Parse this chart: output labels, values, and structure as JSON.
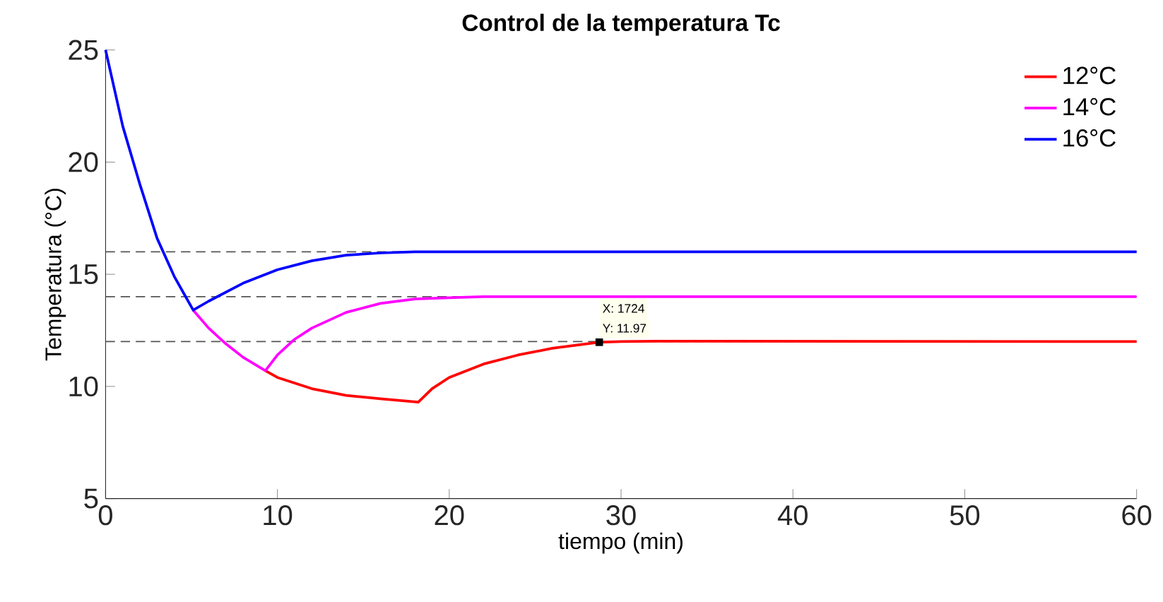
{
  "chart_data": {
    "type": "line",
    "title": "Control de la temperatura Tc",
    "xlabel": "tiempo (min)",
    "ylabel": "Temperatura (°C)",
    "xlim": [
      0,
      60
    ],
    "ylim": [
      5,
      25
    ],
    "xticks": [
      0,
      10,
      20,
      30,
      40,
      50,
      60
    ],
    "yticks": [
      5,
      10,
      15,
      20,
      25
    ],
    "grid": false,
    "legend": "top right",
    "line_style": "solid",
    "marker": "none",
    "series": [
      {
        "name": "12°C",
        "color": "#ff0000",
        "x": [
          9.3,
          10,
          12,
          14,
          16,
          18.2,
          19,
          20,
          22,
          24,
          26,
          28,
          28.73,
          30,
          32,
          35,
          60
        ],
        "values": [
          10.7,
          10.4,
          9.9,
          9.6,
          9.45,
          9.3,
          9.9,
          10.4,
          11.0,
          11.4,
          11.7,
          11.9,
          11.97,
          12.0,
          12.02,
          12.02,
          12
        ]
      },
      {
        "name": "14°C",
        "color": "#ff00ff",
        "x": [
          5.1,
          6,
          7,
          8,
          9.3,
          10,
          11,
          12,
          14,
          16,
          18,
          20,
          22,
          60
        ],
        "values": [
          13.4,
          12.6,
          11.9,
          11.3,
          10.7,
          11.4,
          12.1,
          12.6,
          13.3,
          13.7,
          13.9,
          13.95,
          14,
          14
        ]
      },
      {
        "name": "16°C",
        "color": "#0000ff",
        "x": [
          0,
          1,
          2,
          3,
          4,
          5.1,
          6,
          8,
          10,
          12,
          14,
          16,
          18,
          60
        ],
        "values": [
          25,
          21.6,
          19.0,
          16.6,
          14.9,
          13.4,
          13.8,
          14.6,
          15.2,
          15.6,
          15.85,
          15.95,
          16,
          16
        ]
      }
    ],
    "ref_lines": [
      {
        "axis": "y",
        "value": 12,
        "color": "#555555",
        "line_style": "dashed"
      },
      {
        "axis": "y",
        "value": 14,
        "color": "#555555",
        "line_style": "dashed"
      },
      {
        "axis": "y",
        "value": 16,
        "color": "#555555",
        "line_style": "dashed"
      }
    ],
    "annotations": [
      {
        "text": "X: 1724",
        "x": 28.73,
        "y": 11.97
      },
      {
        "text": "Y: 11.97",
        "x": 28.73,
        "y": 11.97
      }
    ]
  }
}
